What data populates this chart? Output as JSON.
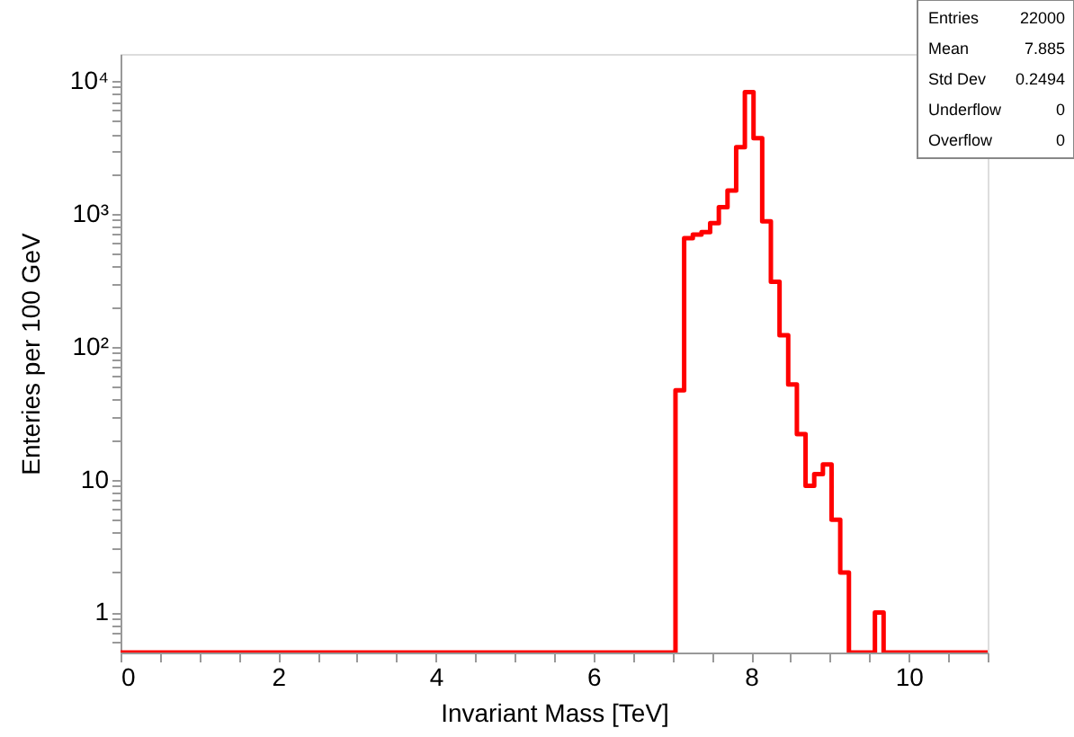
{
  "chart_data": {
    "type": "histogram",
    "xlabel": "Invariant Mass [TeV]",
    "ylabel": "Enteries per 100 GeV",
    "bins": [
      0,
      0.11,
      0.22,
      0.33,
      0.44,
      0.55,
      0.66,
      0.77,
      0.88,
      0.99,
      1.1,
      1.21,
      1.32,
      1.43,
      1.54,
      1.65,
      1.76,
      1.87,
      1.98,
      2.09,
      2.2,
      2.31,
      2.42,
      2.53,
      2.64,
      2.75,
      2.86,
      2.97,
      3.08,
      3.19,
      3.3,
      3.41,
      3.52,
      3.63,
      3.74,
      3.85,
      3.96,
      4.07,
      4.18,
      4.29,
      4.4,
      4.51,
      4.62,
      4.73,
      4.84,
      4.95,
      5.06,
      5.17,
      5.28,
      5.39,
      5.5,
      5.61,
      5.72,
      5.83,
      5.94,
      6.05,
      6.16,
      6.27,
      6.38,
      6.49,
      6.6,
      6.71,
      6.82,
      6.93,
      7.04,
      7.15,
      7.26,
      7.37,
      7.48,
      7.59,
      7.7,
      7.81,
      7.92,
      8.03,
      8.14,
      8.25,
      8.36,
      8.47,
      8.58,
      8.69,
      8.8,
      8.91,
      9.02,
      9.13,
      9.24,
      9.35,
      9.46,
      9.57,
      9.68,
      9.79,
      9.9,
      10.01,
      10.12,
      10.23,
      10.34,
      10.45,
      10.56,
      10.67,
      10.78,
      10.89,
      11
    ],
    "values": [
      null,
      null,
      null,
      null,
      null,
      null,
      null,
      null,
      null,
      null,
      null,
      null,
      null,
      null,
      null,
      null,
      null,
      null,
      null,
      null,
      null,
      null,
      null,
      null,
      null,
      null,
      null,
      null,
      null,
      null,
      null,
      null,
      null,
      null,
      null,
      null,
      null,
      null,
      null,
      null,
      null,
      null,
      null,
      null,
      null,
      null,
      null,
      null,
      null,
      null,
      null,
      null,
      null,
      null,
      null,
      null,
      null,
      null,
      null,
      null,
      null,
      null,
      null,
      null,
      47,
      656,
      700,
      730,
      851,
      1125,
      1500,
      3180,
      8260,
      3720,
      878,
      309,
      122,
      52,
      22,
      9,
      11,
      13,
      5,
      2,
      null,
      null,
      null,
      1,
      null,
      null,
      null,
      null,
      null,
      null,
      null,
      null,
      null,
      null,
      null,
      null
    ],
    "color": "#ff0000",
    "log": true,
    "xlim": [
      0,
      11
    ],
    "xticks": [
      0,
      {
        "value": 0.5,
        "label": null
      },
      {
        "value": 1,
        "label": null
      },
      {
        "value": 1.5,
        "label": null
      },
      2,
      {
        "value": 2.5,
        "label": null
      },
      {
        "value": 3,
        "label": null
      },
      {
        "value": 3.5,
        "label": null
      },
      4,
      {
        "value": 4.5,
        "label": null
      },
      {
        "value": 5,
        "label": null
      },
      {
        "value": 5.5,
        "label": null
      },
      6,
      {
        "value": 6.5,
        "label": null
      },
      {
        "value": 7,
        "label": null
      },
      {
        "value": 7.5,
        "label": null
      },
      8,
      {
        "value": 8.5,
        "label": null
      },
      {
        "value": 9,
        "label": null
      },
      {
        "value": 9.5,
        "label": null
      },
      10,
      {
        "value": 10.5,
        "label": null
      },
      {
        "value": 11,
        "label": null
      }
    ],
    "ylim": [
      0.5,
      16000
    ],
    "yticks": [
      {
        "value": 0.6,
        "label": null
      },
      {
        "value": 0.7,
        "label": null
      },
      {
        "value": 0.8,
        "label": null
      },
      {
        "value": 0.9,
        "label": null
      },
      1,
      {
        "value": 2,
        "label": null
      },
      {
        "value": 3,
        "label": null
      },
      {
        "value": 4,
        "label": null
      },
      {
        "value": 5,
        "label": null
      },
      {
        "value": 6,
        "label": null
      },
      {
        "value": 7,
        "label": null
      },
      {
        "value": 8,
        "label": null
      },
      {
        "value": 9,
        "label": null
      },
      10,
      {
        "value": 20,
        "label": null
      },
      {
        "value": 30,
        "label": null
      },
      {
        "value": 40,
        "label": null
      },
      {
        "value": 50,
        "label": null
      },
      {
        "value": 60,
        "label": null
      },
      {
        "value": 70,
        "label": null
      },
      {
        "value": 80,
        "label": null
      },
      {
        "value": 90,
        "label": null
      },
      {
        "value": 100,
        "label": "10²"
      },
      {
        "value": 200,
        "label": null
      },
      {
        "value": 300,
        "label": null
      },
      {
        "value": 400,
        "label": null
      },
      {
        "value": 500,
        "label": null
      },
      {
        "value": 600,
        "label": null
      },
      {
        "value": 700,
        "label": null
      },
      {
        "value": 800,
        "label": null
      },
      {
        "value": 900,
        "label": null
      },
      {
        "value": 1000,
        "label": "10³"
      },
      {
        "value": 2000,
        "label": null
      },
      {
        "value": 3000,
        "label": null
      },
      {
        "value": 4000,
        "label": null
      },
      {
        "value": 5000,
        "label": null
      },
      {
        "value": 6000,
        "label": null
      },
      {
        "value": 7000,
        "label": null
      },
      {
        "value": 8000,
        "label": null
      },
      {
        "value": 9000,
        "label": null
      },
      {
        "value": 10000,
        "label": "10⁴"
      }
    ],
    "grid": false,
    "annotations": [
      "Entries",
      "22000",
      "Mean",
      "7.885",
      "Std Dev",
      "0.2494",
      "Underflow",
      "0",
      "Overflow",
      "0"
    ]
  }
}
